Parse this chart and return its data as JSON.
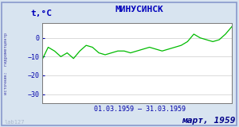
{
  "title": "МИНУСИНСК",
  "ylabel": "t,°C",
  "xlabel_range": "01.03.1959 – 31.03.1959",
  "footer": "март, 1959",
  "source_label": "источник:  гидрометцентр",
  "watermark": "lab127",
  "bg_color": "#d8e4f0",
  "plot_bg_color": "#ffffff",
  "border_color": "#8899cc",
  "line_color": "#00bb00",
  "title_color": "#0000bb",
  "axis_label_color": "#0000bb",
  "tick_label_color": "#0000aa",
  "footer_color": "#000088",
  "source_color": "#4444aa",
  "watermark_color": "#aab8cc",
  "ylim": [
    -35,
    8
  ],
  "yticks": [
    0,
    -10,
    -20,
    -30
  ],
  "temperature_data": [
    -12,
    -5,
    -7,
    -10,
    -8,
    -11,
    -7,
    -4,
    -5,
    -8,
    -9,
    -8,
    -7,
    -7,
    -8,
    -7,
    -6,
    -5,
    -6,
    -7,
    -6,
    -5,
    -4,
    -2,
    2,
    0,
    -1,
    -2,
    -1,
    2,
    6
  ],
  "figsize": [
    3.0,
    1.6
  ],
  "dpi": 100
}
